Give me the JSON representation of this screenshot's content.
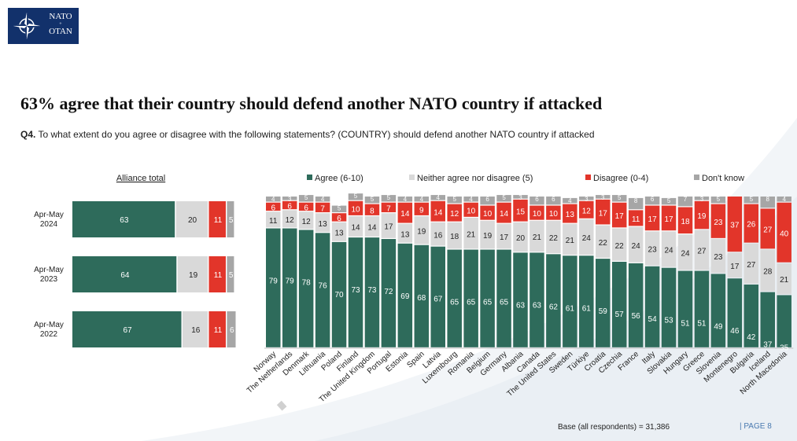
{
  "header": {
    "logo_top": "NATO",
    "logo_sep": "+",
    "logo_bottom": "OTAN",
    "title": "63% agree that their country should defend another NATO country if attacked",
    "question_label": "Q4.",
    "question_text": " To what extent do you agree or disagree with the following statements? (COUNTRY) should defend another NATO country if attacked"
  },
  "footer": {
    "base": "Base (all respondents) = 31,386",
    "page": "|  PAGE 8"
  },
  "colors": {
    "agree": "#2e6b5b",
    "neither": "#d9d9d9",
    "disagree": "#e2352a",
    "dont_know": "#a6a6a6"
  },
  "chart_data": [
    {
      "type": "bar",
      "orientation": "horizontal",
      "stacked": true,
      "title": "Alliance total",
      "categories": [
        "Apr-May 2024",
        "Apr-May 2023",
        "Apr-May 2022"
      ],
      "series": [
        {
          "name": "Agree (6-10)",
          "values": [
            63,
            64,
            67
          ]
        },
        {
          "name": "Neither agree nor disagree (5)",
          "values": [
            20,
            19,
            16
          ]
        },
        {
          "name": "Disagree (0-4)",
          "values": [
            11,
            11,
            11
          ]
        },
        {
          "name": "Don't know",
          "values": [
            5,
            5,
            6
          ]
        }
      ]
    },
    {
      "type": "bar",
      "orientation": "vertical",
      "stacked": true,
      "categories": [
        "Norway",
        "The Netherlands",
        "Denmark",
        "Lithuania",
        "Poland",
        "Finland",
        "The United Kingdom",
        "Portugal",
        "Estonia",
        "Spain",
        "Latvia",
        "Luxembourg",
        "Romania",
        "Belgium",
        "Germany",
        "Albania",
        "Canada",
        "The United States",
        "Sweden",
        "Türkiye",
        "Croatia",
        "Czechia",
        "France",
        "Italy",
        "Slovakia",
        "Hungary",
        "Greece",
        "Slovenia",
        "Montenegro",
        "Bulgaria",
        "Iceland",
        "North Macedonia"
      ],
      "highlighted_category": "The Netherlands",
      "legend_position": "top",
      "series": [
        {
          "name": "Agree (6-10)",
          "values": [
            79,
            79,
            78,
            76,
            70,
            73,
            73,
            72,
            69,
            68,
            67,
            65,
            65,
            65,
            65,
            63,
            63,
            62,
            61,
            61,
            59,
            57,
            56,
            54,
            53,
            51,
            51,
            49,
            46,
            42,
            37,
            35
          ]
        },
        {
          "name": "Neither agree nor disagree (5)",
          "values": [
            11,
            12,
            12,
            13,
            13,
            14,
            14,
            17,
            13,
            19,
            16,
            18,
            21,
            19,
            17,
            20,
            21,
            22,
            21,
            24,
            22,
            22,
            24,
            23,
            24,
            24,
            27,
            23,
            17,
            27,
            28,
            21
          ]
        },
        {
          "name": "Disagree (0-4)",
          "values": [
            6,
            6,
            6,
            7,
            6,
            10,
            8,
            7,
            14,
            9,
            14,
            12,
            10,
            10,
            14,
            15,
            10,
            10,
            13,
            12,
            17,
            17,
            11,
            17,
            17,
            18,
            19,
            23,
            37,
            26,
            27,
            40
          ]
        },
        {
          "name": "Don't know",
          "values": [
            4,
            3,
            5,
            4,
            5,
            5,
            5,
            5,
            4,
            4,
            4,
            5,
            4,
            6,
            5,
            3,
            6,
            6,
            4,
            3,
            3,
            5,
            8,
            6,
            5,
            7,
            3,
            5,
            0,
            5,
            8,
            4
          ]
        }
      ]
    }
  ]
}
